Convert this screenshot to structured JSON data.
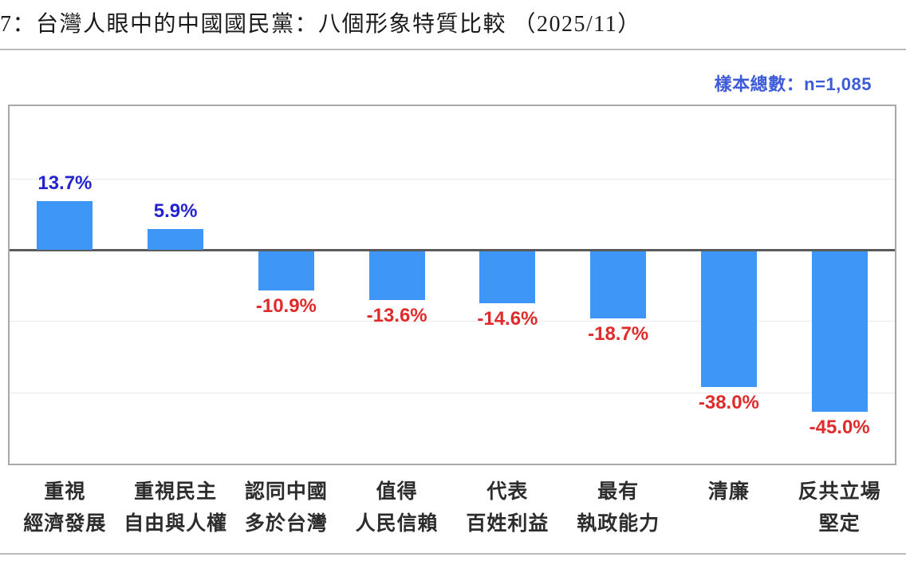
{
  "page": {
    "title": "7：台灣人眼中的中國國民黨：八個形象特質比較 （2025/11）",
    "sample_note": "樣本總數：n=1,085"
  },
  "chart_data": {
    "type": "bar",
    "title": "7：台灣人眼中的中國國民黨：八個形象特質比較 （2025/11）",
    "sample_size_note": "樣本總數：n=1,085",
    "sample_size": 1085,
    "categories": [
      "重視經濟發展",
      "重視民主自由與人權",
      "認同中國多於台灣",
      "值得人民信賴",
      "代表百姓利益",
      "最有執政能力",
      "清廉",
      "反共立場堅定"
    ],
    "category_lines": [
      [
        "重視",
        "經濟發展"
      ],
      [
        "重視民主",
        "自由與人權"
      ],
      [
        "認同中國",
        "多於台灣"
      ],
      [
        "值得",
        "人民信賴"
      ],
      [
        "代表",
        "百姓利益"
      ],
      [
        "最有",
        "執政能力"
      ],
      [
        "清廉"
      ],
      [
        "反共立場",
        "堅定"
      ]
    ],
    "values": [
      13.7,
      5.9,
      -10.9,
      -13.6,
      -14.6,
      -18.7,
      -38.0,
      -45.0
    ],
    "value_labels": [
      "13.7%",
      "5.9%",
      "-10.9%",
      "-13.6%",
      "-14.6%",
      "-18.7%",
      "-38.0%",
      "-45.0%"
    ],
    "unit": "%",
    "ylim": [
      -60,
      40
    ],
    "gridline_values": [
      20,
      -20,
      -40
    ],
    "grid": "on",
    "legend": "none",
    "xlabel": "",
    "ylabel": "",
    "colors": {
      "bar": "#3e97f6",
      "positive_label": "#2424ce",
      "negative_label": "#e02b2b",
      "sample_note": "#3d5bd6",
      "zero_line": "#5a5a5a",
      "plot_border": "#a8a8a8"
    }
  }
}
